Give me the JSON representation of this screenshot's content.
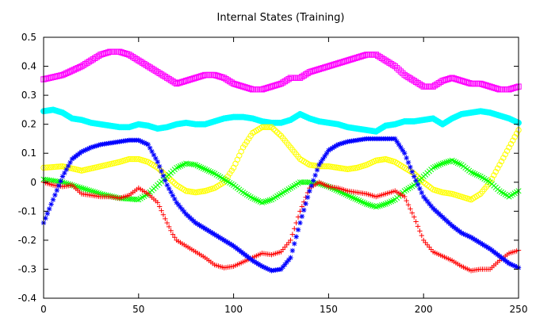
{
  "chart_data": {
    "type": "scatter",
    "title": "Internal States (Training)",
    "xlabel": "",
    "ylabel": "",
    "xlim": [
      0,
      250
    ],
    "ylim": [
      -0.4,
      0.5
    ],
    "x_ticks": [
      0,
      50,
      100,
      150,
      200,
      250
    ],
    "y_ticks": [
      -0.4,
      -0.3,
      -0.2,
      -0.1,
      0,
      0.1,
      0.2,
      0.3,
      0.4,
      0.5
    ],
    "grid": false,
    "legend": "none",
    "series": [
      {
        "color": "#ff00ff",
        "marker": "square",
        "x": [
          0,
          10,
          20,
          30,
          35,
          40,
          45,
          50,
          55,
          60,
          65,
          70,
          75,
          80,
          85,
          90,
          95,
          100,
          105,
          110,
          115,
          120,
          125,
          130,
          135,
          140,
          145,
          150,
          155,
          160,
          165,
          170,
          175,
          180,
          185,
          190,
          195,
          200,
          205,
          210,
          215,
          220,
          225,
          230,
          235,
          240,
          245,
          250
        ],
        "y": [
          0.355,
          0.37,
          0.4,
          0.44,
          0.45,
          0.45,
          0.44,
          0.42,
          0.4,
          0.38,
          0.36,
          0.34,
          0.35,
          0.36,
          0.37,
          0.37,
          0.36,
          0.34,
          0.33,
          0.32,
          0.32,
          0.33,
          0.34,
          0.36,
          0.36,
          0.38,
          0.39,
          0.4,
          0.41,
          0.42,
          0.43,
          0.44,
          0.44,
          0.42,
          0.4,
          0.37,
          0.35,
          0.33,
          0.33,
          0.35,
          0.36,
          0.35,
          0.34,
          0.34,
          0.33,
          0.32,
          0.32,
          0.33
        ]
      },
      {
        "color": "#00ffff",
        "marker": "circle",
        "x": [
          0,
          5,
          10,
          15,
          20,
          25,
          30,
          35,
          40,
          45,
          50,
          55,
          60,
          65,
          70,
          75,
          80,
          85,
          90,
          95,
          100,
          105,
          110,
          115,
          120,
          125,
          130,
          135,
          140,
          145,
          150,
          155,
          160,
          165,
          170,
          175,
          180,
          185,
          190,
          195,
          200,
          205,
          210,
          215,
          220,
          225,
          230,
          235,
          240,
          245,
          250
        ],
        "y": [
          0.245,
          0.25,
          0.24,
          0.22,
          0.215,
          0.205,
          0.2,
          0.195,
          0.19,
          0.19,
          0.2,
          0.195,
          0.185,
          0.19,
          0.2,
          0.205,
          0.2,
          0.2,
          0.21,
          0.22,
          0.225,
          0.225,
          0.22,
          0.21,
          0.205,
          0.205,
          0.215,
          0.235,
          0.22,
          0.21,
          0.205,
          0.2,
          0.19,
          0.185,
          0.18,
          0.175,
          0.195,
          0.2,
          0.21,
          0.21,
          0.215,
          0.22,
          0.2,
          0.22,
          0.235,
          0.24,
          0.245,
          0.24,
          0.23,
          0.22,
          0.205
        ]
      },
      {
        "color": "#ffff00",
        "marker": "circle-open",
        "x": [
          0,
          10,
          20,
          30,
          40,
          45,
          50,
          55,
          60,
          65,
          70,
          75,
          80,
          85,
          90,
          95,
          100,
          105,
          110,
          115,
          120,
          125,
          130,
          135,
          140,
          145,
          150,
          155,
          160,
          165,
          170,
          175,
          180,
          185,
          190,
          195,
          200,
          205,
          210,
          215,
          220,
          225,
          230,
          235,
          240,
          245,
          250
        ],
        "y": [
          0.05,
          0.055,
          0.04,
          0.055,
          0.07,
          0.08,
          0.08,
          0.07,
          0.05,
          0.02,
          -0.01,
          -0.03,
          -0.035,
          -0.03,
          -0.02,
          0.0,
          0.05,
          0.12,
          0.17,
          0.19,
          0.19,
          0.16,
          0.12,
          0.08,
          0.06,
          0.055,
          0.055,
          0.05,
          0.045,
          0.05,
          0.06,
          0.075,
          0.08,
          0.07,
          0.05,
          0.03,
          0.0,
          -0.025,
          -0.035,
          -0.04,
          -0.05,
          -0.06,
          -0.04,
          0.0,
          0.06,
          0.12,
          0.18
        ]
      },
      {
        "color": "#00ff00",
        "marker": "x",
        "x": [
          0,
          10,
          20,
          30,
          40,
          50,
          55,
          60,
          65,
          70,
          75,
          80,
          85,
          90,
          95,
          100,
          105,
          110,
          115,
          120,
          125,
          130,
          135,
          140,
          145,
          150,
          155,
          160,
          165,
          170,
          175,
          180,
          185,
          190,
          195,
          200,
          205,
          210,
          215,
          220,
          225,
          230,
          235,
          240,
          245,
          250
        ],
        "y": [
          0.01,
          0.0,
          -0.02,
          -0.04,
          -0.055,
          -0.06,
          -0.04,
          -0.01,
          0.02,
          0.05,
          0.065,
          0.06,
          0.045,
          0.03,
          0.01,
          -0.01,
          -0.035,
          -0.055,
          -0.07,
          -0.06,
          -0.04,
          -0.02,
          0.0,
          0.0,
          -0.005,
          -0.015,
          -0.03,
          -0.045,
          -0.06,
          -0.075,
          -0.085,
          -0.075,
          -0.06,
          -0.03,
          -0.01,
          0.02,
          0.05,
          0.065,
          0.075,
          0.06,
          0.035,
          0.02,
          0.0,
          -0.03,
          -0.05,
          -0.03
        ]
      },
      {
        "color": "#ff0000",
        "marker": "plus",
        "x": [
          0,
          5,
          10,
          15,
          20,
          25,
          30,
          35,
          40,
          45,
          50,
          55,
          60,
          65,
          68,
          70,
          75,
          80,
          85,
          90,
          95,
          100,
          105,
          110,
          115,
          120,
          125,
          130,
          135,
          140,
          145,
          150,
          155,
          160,
          165,
          170,
          175,
          180,
          185,
          190,
          195,
          200,
          205,
          210,
          215,
          220,
          225,
          230,
          235,
          240,
          245,
          250
        ],
        "y": [
          0.0,
          -0.01,
          -0.015,
          -0.01,
          -0.04,
          -0.045,
          -0.05,
          -0.05,
          -0.055,
          -0.045,
          -0.02,
          -0.04,
          -0.07,
          -0.14,
          -0.18,
          -0.2,
          -0.22,
          -0.24,
          -0.26,
          -0.285,
          -0.295,
          -0.29,
          -0.275,
          -0.26,
          -0.245,
          -0.25,
          -0.24,
          -0.2,
          -0.1,
          -0.02,
          0.0,
          -0.015,
          -0.02,
          -0.03,
          -0.035,
          -0.04,
          -0.05,
          -0.04,
          -0.03,
          -0.05,
          -0.12,
          -0.2,
          -0.24,
          -0.255,
          -0.27,
          -0.29,
          -0.305,
          -0.3,
          -0.3,
          -0.27,
          -0.245,
          -0.235
        ]
      },
      {
        "color": "#0000ff",
        "marker": "star",
        "x": [
          0,
          5,
          10,
          15,
          20,
          25,
          30,
          35,
          40,
          45,
          50,
          55,
          60,
          65,
          70,
          75,
          80,
          85,
          90,
          95,
          100,
          105,
          110,
          115,
          120,
          125,
          130,
          135,
          140,
          145,
          150,
          155,
          160,
          165,
          170,
          175,
          180,
          185,
          190,
          195,
          200,
          205,
          210,
          215,
          220,
          225,
          230,
          235,
          240,
          245,
          250
        ],
        "y": [
          -0.14,
          -0.06,
          0.02,
          0.08,
          0.105,
          0.12,
          0.13,
          0.135,
          0.14,
          0.145,
          0.145,
          0.13,
          0.07,
          -0.01,
          -0.07,
          -0.11,
          -0.14,
          -0.16,
          -0.18,
          -0.2,
          -0.22,
          -0.245,
          -0.27,
          -0.29,
          -0.305,
          -0.3,
          -0.26,
          -0.14,
          -0.03,
          0.06,
          0.11,
          0.13,
          0.14,
          0.145,
          0.15,
          0.15,
          0.15,
          0.15,
          0.1,
          0.02,
          -0.05,
          -0.09,
          -0.12,
          -0.15,
          -0.175,
          -0.19,
          -0.21,
          -0.23,
          -0.255,
          -0.28,
          -0.295
        ]
      }
    ]
  }
}
